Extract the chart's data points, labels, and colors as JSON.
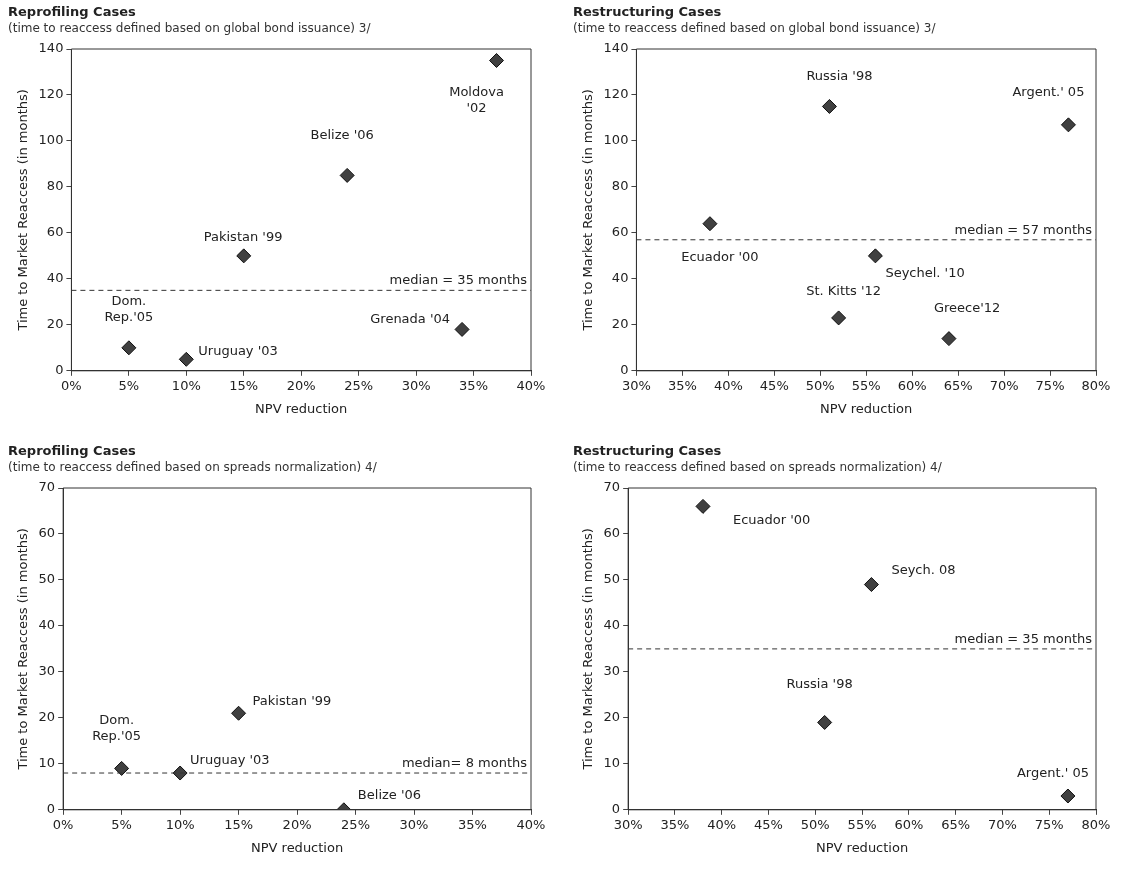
{
  "chart_data": [
    {
      "type": "scatter",
      "title": "Reprofiling Cases",
      "subtitle": "(time to reaccess defined based on global bond issuance) 3/",
      "xlabel": "NPV reduction",
      "ylabel": "Time to Market Reaccess (in months)",
      "series": [
        {
          "color": "#404040",
          "x": [
            5,
            10,
            15,
            24,
            34,
            37
          ],
          "values": [
            10,
            5,
            50,
            85,
            18,
            135
          ]
        }
      ],
      "xlim": [
        0,
        40
      ],
      "xticks": [
        {
          "value": 0,
          "label": "0%"
        },
        {
          "value": 5,
          "label": "5%"
        },
        {
          "value": 10,
          "label": "10%"
        },
        {
          "value": 15,
          "label": "15%"
        },
        {
          "value": 20,
          "label": "20%"
        },
        {
          "value": 25,
          "label": "25%"
        },
        {
          "value": 30,
          "label": "30%"
        },
        {
          "value": 35,
          "label": "35%"
        },
        {
          "value": 40,
          "label": "40%"
        }
      ],
      "ylim": [
        0,
        140
      ],
      "yticks": [
        0,
        20,
        40,
        60,
        80,
        100,
        120,
        140
      ],
      "ref_lines": [
        {
          "axis": "y",
          "value": 35,
          "label": "median = 35 months",
          "line_style": "dashed"
        }
      ],
      "annotations": [
        {
          "text": "Dom.\nRep.'05",
          "x": 5,
          "y": 10
        },
        {
          "text": "Uruguay '03",
          "x": 10,
          "y": 5
        },
        {
          "text": "Pakistan '99",
          "x": 15,
          "y": 50
        },
        {
          "text": "Belize '06",
          "x": 24,
          "y": 85
        },
        {
          "text": "Grenada '04",
          "x": 34,
          "y": 18
        },
        {
          "text": "Moldova\n'02",
          "x": 37,
          "y": 135
        }
      ],
      "marker": "diamond",
      "grid": false,
      "legend": false
    },
    {
      "type": "scatter",
      "title": "Restructuring Cases",
      "subtitle": "(time to reaccess defined based on global bond issuance) 3/",
      "xlabel": "NPV reduction",
      "ylabel": "Time to Market Reaccess (in months)",
      "series": [
        {
          "color": "#404040",
          "x": [
            38,
            51,
            52,
            56,
            64,
            77
          ],
          "values": [
            64,
            115,
            23,
            50,
            14,
            107
          ]
        }
      ],
      "xlim": [
        30,
        80
      ],
      "xticks": [
        {
          "value": 30,
          "label": "30%"
        },
        {
          "value": 35,
          "label": "35%"
        },
        {
          "value": 40,
          "label": "40%"
        },
        {
          "value": 45,
          "label": "45%"
        },
        {
          "value": 50,
          "label": "50%"
        },
        {
          "value": 55,
          "label": "55%"
        },
        {
          "value": 60,
          "label": "60%"
        },
        {
          "value": 65,
          "label": "65%"
        },
        {
          "value": 70,
          "label": "70%"
        },
        {
          "value": 75,
          "label": "75%"
        },
        {
          "value": 80,
          "label": "80%"
        }
      ],
      "ylim": [
        0,
        140
      ],
      "yticks": [
        0,
        20,
        40,
        60,
        80,
        100,
        120,
        140
      ],
      "ref_lines": [
        {
          "axis": "y",
          "value": 57,
          "label": "median = 57 months",
          "line_style": "dashed"
        }
      ],
      "annotations": [
        {
          "text": "Ecuador '00",
          "x": 38,
          "y": 64
        },
        {
          "text": "Russia '98",
          "x": 51,
          "y": 115
        },
        {
          "text": "St. Kitts '12",
          "x": 52,
          "y": 23
        },
        {
          "text": "Seychel. '10",
          "x": 56,
          "y": 50
        },
        {
          "text": "Greece'12",
          "x": 64,
          "y": 14
        },
        {
          "text": "Argent.' 05",
          "x": 77,
          "y": 107
        }
      ],
      "marker": "diamond",
      "grid": false,
      "legend": false
    },
    {
      "type": "scatter",
      "title": "Reprofiling Cases",
      "subtitle": "(time to reaccess defined based on spreads normalization) 4/",
      "xlabel": "NPV reduction",
      "ylabel": "Time to Market Reaccess (in months)",
      "series": [
        {
          "color": "#404040",
          "x": [
            5,
            10,
            15,
            24
          ],
          "values": [
            9,
            8,
            21,
            0
          ]
        }
      ],
      "xlim": [
        0,
        40
      ],
      "xticks": [
        {
          "value": 0,
          "label": "0%"
        },
        {
          "value": 5,
          "label": "5%"
        },
        {
          "value": 10,
          "label": "10%"
        },
        {
          "value": 15,
          "label": "15%"
        },
        {
          "value": 20,
          "label": "20%"
        },
        {
          "value": 25,
          "label": "25%"
        },
        {
          "value": 30,
          "label": "30%"
        },
        {
          "value": 35,
          "label": "35%"
        },
        {
          "value": 40,
          "label": "40%"
        }
      ],
      "ylim": [
        0,
        70
      ],
      "yticks": [
        0,
        10,
        20,
        30,
        40,
        50,
        60,
        70
      ],
      "ref_lines": [
        {
          "axis": "y",
          "value": 8,
          "label": "median= 8 months",
          "line_style": "dashed"
        }
      ],
      "annotations": [
        {
          "text": "Dom.\nRep.'05",
          "x": 5,
          "y": 9
        },
        {
          "text": "Uruguay '03",
          "x": 10,
          "y": 8
        },
        {
          "text": "Pakistan '99",
          "x": 15,
          "y": 21
        },
        {
          "text": "Belize '06",
          "x": 24,
          "y": 0
        }
      ],
      "marker": "diamond",
      "grid": false,
      "legend": false
    },
    {
      "type": "scatter",
      "title": "Restructuring Cases",
      "subtitle": "(time to reaccess defined based on spreads normalization) 4/",
      "xlabel": "NPV reduction",
      "ylabel": "Time to Market Reaccess (in months)",
      "series": [
        {
          "color": "#404040",
          "x": [
            38,
            56,
            51,
            77
          ],
          "values": [
            66,
            49,
            19,
            3
          ]
        }
      ],
      "xlim": [
        30,
        80
      ],
      "xticks": [
        {
          "value": 30,
          "label": "30%"
        },
        {
          "value": 35,
          "label": "35%"
        },
        {
          "value": 40,
          "label": "40%"
        },
        {
          "value": 45,
          "label": "45%"
        },
        {
          "value": 50,
          "label": "50%"
        },
        {
          "value": 55,
          "label": "55%"
        },
        {
          "value": 60,
          "label": "60%"
        },
        {
          "value": 65,
          "label": "65%"
        },
        {
          "value": 70,
          "label": "70%"
        },
        {
          "value": 75,
          "label": "75%"
        },
        {
          "value": 80,
          "label": "80%"
        }
      ],
      "ylim": [
        0,
        70
      ],
      "yticks": [
        0,
        10,
        20,
        30,
        40,
        50,
        60,
        70
      ],
      "ref_lines": [
        {
          "axis": "y",
          "value": 35,
          "label": "median = 35 months",
          "line_style": "dashed"
        }
      ],
      "annotations": [
        {
          "text": "Ecuador '00",
          "x": 38,
          "y": 66
        },
        {
          "text": "Seych. 08",
          "x": 56,
          "y": 49
        },
        {
          "text": "Russia '98",
          "x": 51,
          "y": 19
        },
        {
          "text": "Argent.' 05",
          "x": 77,
          "y": 3
        }
      ],
      "marker": "diamond",
      "grid": false,
      "legend": false
    }
  ]
}
